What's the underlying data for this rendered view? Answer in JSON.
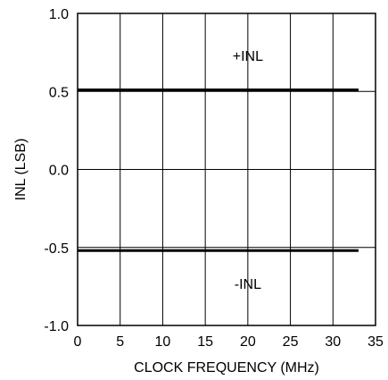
{
  "chart_data": {
    "type": "line",
    "title": "",
    "xlabel": "CLOCK FREQUENCY (MHz)",
    "ylabel": "INL (LSB)",
    "xlim": [
      0,
      35
    ],
    "ylim": [
      -1.0,
      1.0
    ],
    "x_ticks": [
      "0",
      "5",
      "10",
      "15",
      "20",
      "25",
      "30",
      "35"
    ],
    "y_ticks": [
      "1.0",
      "0.5",
      "0.0",
      "-0.5",
      "-1.0"
    ],
    "grid": true,
    "series": [
      {
        "name": "+INL",
        "x": [
          0,
          33
        ],
        "y": [
          0.51,
          0.51
        ]
      },
      {
        "name": "-INL",
        "x": [
          0,
          33
        ],
        "y": [
          -0.52,
          -0.52
        ]
      }
    ],
    "annotations": [
      {
        "text": "+INL",
        "x": 20,
        "y": 0.73
      },
      {
        "text": "-INL",
        "x": 20,
        "y": -0.73
      }
    ]
  }
}
